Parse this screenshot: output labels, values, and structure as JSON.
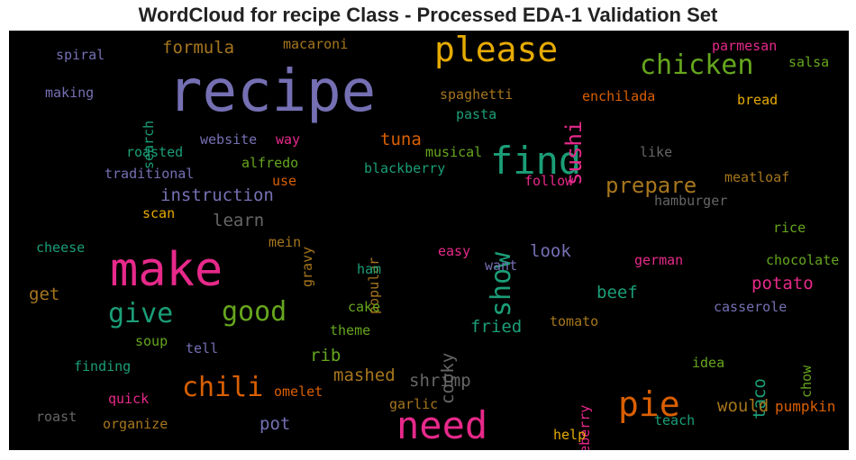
{
  "chart_data": {
    "type": "wordcloud",
    "title": "WordCloud for recipe Class - Processed EDA-1 Validation Set",
    "background": "#000000",
    "words": [
      {
        "text": "recipe",
        "color": "#7570b3",
        "vertical": false
      },
      {
        "text": "make",
        "color": "#e7298a",
        "vertical": false
      },
      {
        "text": "need",
        "color": "#e7298a",
        "vertical": false
      },
      {
        "text": "find",
        "color": "#1b9e77",
        "vertical": false
      },
      {
        "text": "please",
        "color": "#e6ab02",
        "vertical": false
      },
      {
        "text": "pie",
        "color": "#d95f02",
        "vertical": false
      },
      {
        "text": "chili",
        "color": "#d95f02",
        "vertical": false
      },
      {
        "text": "show",
        "color": "#1b9e77",
        "vertical": true
      },
      {
        "text": "chicken",
        "color": "#66a61e",
        "vertical": false
      },
      {
        "text": "give",
        "color": "#1b9e77",
        "vertical": false
      },
      {
        "text": "good",
        "color": "#66a61e",
        "vertical": false
      },
      {
        "text": "prepare",
        "color": "#a6761d",
        "vertical": false
      },
      {
        "text": "sushi",
        "color": "#e7298a",
        "vertical": true
      },
      {
        "text": "instruction",
        "color": "#7570b3",
        "vertical": false
      },
      {
        "text": "learn",
        "color": "#666666",
        "vertical": false
      },
      {
        "text": "cooky",
        "color": "#666666",
        "vertical": true
      },
      {
        "text": "shrimp",
        "color": "#666666",
        "vertical": false
      },
      {
        "text": "fried",
        "color": "#1b9e77",
        "vertical": false
      },
      {
        "text": "mashed",
        "color": "#a6761d",
        "vertical": false
      },
      {
        "text": "taco",
        "color": "#1b9e77",
        "vertical": true
      },
      {
        "text": "would",
        "color": "#a6761d",
        "vertical": false
      },
      {
        "text": "potato",
        "color": "#e7298a",
        "vertical": false
      },
      {
        "text": "beef",
        "color": "#1b9e77",
        "vertical": false
      },
      {
        "text": "rib",
        "color": "#66a61e",
        "vertical": false
      },
      {
        "text": "pot",
        "color": "#7570b3",
        "vertical": false
      },
      {
        "text": "tuna",
        "color": "#d95f02",
        "vertical": false
      },
      {
        "text": "look",
        "color": "#7570b3",
        "vertical": false
      },
      {
        "text": "formula",
        "color": "#a6761d",
        "vertical": false
      },
      {
        "text": "get",
        "color": "#a6761d",
        "vertical": false
      },
      {
        "text": "pumpkin",
        "color": "#d95f02",
        "vertical": false
      },
      {
        "text": "macaroni",
        "color": "#a6761d",
        "vertical": false
      },
      {
        "text": "spiral",
        "color": "#7570b3",
        "vertical": false
      },
      {
        "text": "making",
        "color": "#7570b3",
        "vertical": false
      },
      {
        "text": "search",
        "color": "#1b9e77",
        "vertical": true
      },
      {
        "text": "spaghetti",
        "color": "#a6761d",
        "vertical": false
      },
      {
        "text": "pasta",
        "color": "#1b9e77",
        "vertical": false
      },
      {
        "text": "enchilada",
        "color": "#d95f02",
        "vertical": false
      },
      {
        "text": "parmesan",
        "color": "#e7298a",
        "vertical": false
      },
      {
        "text": "salsa",
        "color": "#66a61e",
        "vertical": false
      },
      {
        "text": "bread",
        "color": "#e6ab02",
        "vertical": false
      },
      {
        "text": "roasted",
        "color": "#1b9e77",
        "vertical": false
      },
      {
        "text": "website",
        "color": "#7570b3",
        "vertical": false
      },
      {
        "text": "way",
        "color": "#e7298a",
        "vertical": false
      },
      {
        "text": "musical",
        "color": "#66a61e",
        "vertical": false
      },
      {
        "text": "like",
        "color": "#666666",
        "vertical": false
      },
      {
        "text": "traditional",
        "color": "#7570b3",
        "vertical": false
      },
      {
        "text": "alfredo",
        "color": "#66a61e",
        "vertical": false
      },
      {
        "text": "blackberry",
        "color": "#1b9e77",
        "vertical": false
      },
      {
        "text": "use",
        "color": "#d95f02",
        "vertical": false
      },
      {
        "text": "follow",
        "color": "#e7298a",
        "vertical": false
      },
      {
        "text": "meatloaf",
        "color": "#a6761d",
        "vertical": false
      },
      {
        "text": "hamburger",
        "color": "#666666",
        "vertical": false
      },
      {
        "text": "scan",
        "color": "#e6ab02",
        "vertical": false
      },
      {
        "text": "gravy",
        "color": "#a6761d",
        "vertical": true
      },
      {
        "text": "popular",
        "color": "#a6761d",
        "vertical": true
      },
      {
        "text": "rice",
        "color": "#66a61e",
        "vertical": false
      },
      {
        "text": "cheese",
        "color": "#1b9e77",
        "vertical": false
      },
      {
        "text": "mein",
        "color": "#a6761d",
        "vertical": false
      },
      {
        "text": "easy",
        "color": "#e7298a",
        "vertical": false
      },
      {
        "text": "german",
        "color": "#e7298a",
        "vertical": false
      },
      {
        "text": "chocolate",
        "color": "#66a61e",
        "vertical": false
      },
      {
        "text": "ham",
        "color": "#1b9e77",
        "vertical": false
      },
      {
        "text": "want",
        "color": "#7570b3",
        "vertical": false
      },
      {
        "text": "cake",
        "color": "#66a61e",
        "vertical": false
      },
      {
        "text": "theme",
        "color": "#66a61e",
        "vertical": false
      },
      {
        "text": "tomato",
        "color": "#a6761d",
        "vertical": false
      },
      {
        "text": "casserole",
        "color": "#7570b3",
        "vertical": false
      },
      {
        "text": "soup",
        "color": "#66a61e",
        "vertical": false
      },
      {
        "text": "tell",
        "color": "#7570b3",
        "vertical": false
      },
      {
        "text": "finding",
        "color": "#1b9e77",
        "vertical": false
      },
      {
        "text": "blueberry",
        "color": "#e7298a",
        "vertical": true
      },
      {
        "text": "idea",
        "color": "#66a61e",
        "vertical": false
      },
      {
        "text": "chow",
        "color": "#66a61e",
        "vertical": true
      },
      {
        "text": "quick",
        "color": "#e7298a",
        "vertical": false
      },
      {
        "text": "omelet",
        "color": "#d95f02",
        "vertical": false
      },
      {
        "text": "garlic",
        "color": "#a6761d",
        "vertical": false
      },
      {
        "text": "roast",
        "color": "#666666",
        "vertical": false
      },
      {
        "text": "organize",
        "color": "#a6761d",
        "vertical": false
      },
      {
        "text": "teach",
        "color": "#1b9e77",
        "vertical": false
      },
      {
        "text": "help",
        "color": "#e6ab02",
        "vertical": false
      }
    ]
  }
}
